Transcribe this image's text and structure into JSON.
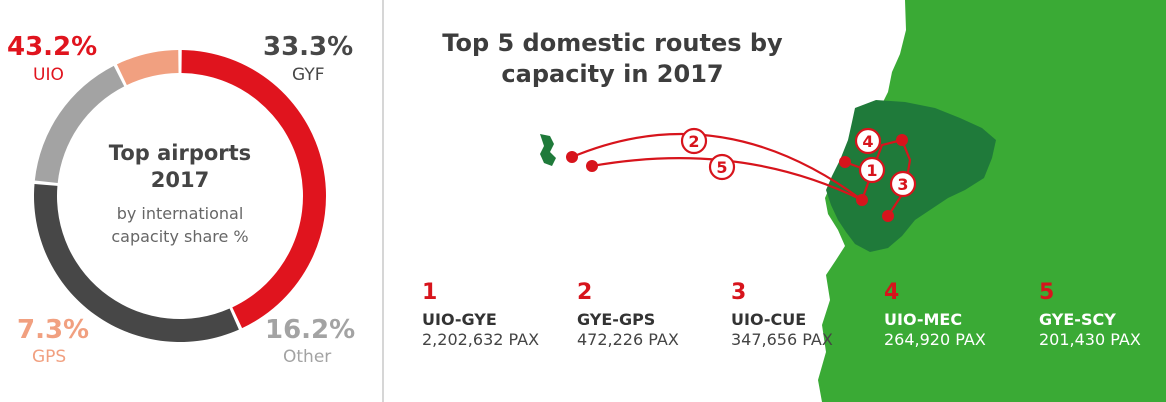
{
  "chart_data": [
    {
      "type": "pie",
      "title": "Top airports 2017",
      "subtitle": "by international capacity share %",
      "slices": [
        {
          "label": "UIO",
          "value": 43.2,
          "display": "43.2%",
          "color": "#e0141e"
        },
        {
          "label": "GYF",
          "value": 33.3,
          "display": "33.3%",
          "color": "#474747"
        },
        {
          "label": "Other",
          "value": 16.2,
          "display": "16.2%",
          "color": "#a3a3a3"
        },
        {
          "label": "GPS",
          "value": 7.3,
          "display": "7.3%",
          "color": "#f1a080"
        }
      ]
    },
    {
      "type": "table",
      "title": "Top 5 domestic routes by capacity in 2017",
      "routes": [
        {
          "rank": "1",
          "route": "UIO-GYE",
          "pax": "2,202,632 PAX"
        },
        {
          "rank": "2",
          "route": "GYE-GPS",
          "pax": "472,226 PAX"
        },
        {
          "rank": "3",
          "route": "UIO-CUE",
          "pax": "347,656 PAX"
        },
        {
          "rank": "4",
          "route": "UIO-MEC",
          "pax": "264,920 PAX"
        },
        {
          "rank": "5",
          "route": "GYE-SCY",
          "pax": "201,430 PAX"
        }
      ]
    }
  ],
  "colors": {
    "map_green": "#3aaa35",
    "country_green": "#1f7a3a",
    "route_red": "#d7141c"
  },
  "map_markers": [
    "1",
    "2",
    "3",
    "4",
    "5"
  ]
}
